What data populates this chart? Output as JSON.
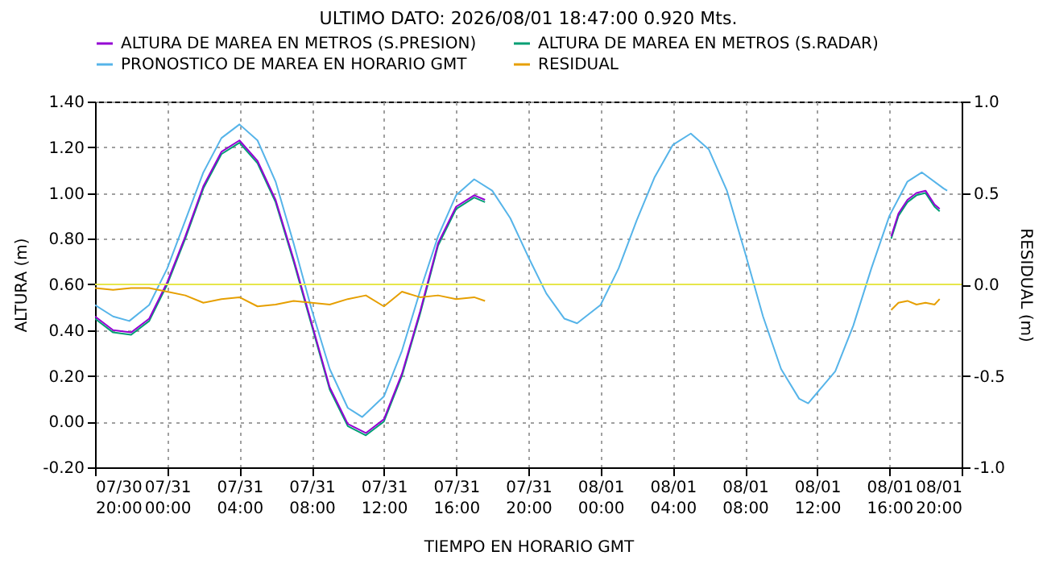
{
  "chart_data": {
    "type": "line",
    "title": "ULTIMO DATO: 2026/08/01  18:47:00 0.920 Mts.",
    "xlabel": "TIEMPO EN HORARIO GMT",
    "ylabel": "ALTURA (m)",
    "y2label": "RESIDUAL (m)",
    "xlim": [
      "2026-07-30T20:00",
      "2026-08-01T20:00"
    ],
    "xticks": [
      {
        "value": "2026-07-30T20:00",
        "label": "07/30\n20:00"
      },
      {
        "value": "2026-07-31T00:00",
        "label": "07/31\n00:00"
      },
      {
        "value": "2026-07-31T04:00",
        "label": "07/31\n04:00"
      },
      {
        "value": "2026-07-31T08:00",
        "label": "07/31\n08:00"
      },
      {
        "value": "2026-07-31T12:00",
        "label": "07/31\n12:00"
      },
      {
        "value": "2026-07-31T16:00",
        "label": "07/31\n16:00"
      },
      {
        "value": "2026-07-31T20:00",
        "label": "07/31\n20:00"
      },
      {
        "value": "2026-08-01T00:00",
        "label": "08/01\n00:00"
      },
      {
        "value": "2026-08-01T04:00",
        "label": "08/01\n04:00"
      },
      {
        "value": "2026-08-01T08:00",
        "label": "08/01\n08:00"
      },
      {
        "value": "2026-08-01T12:00",
        "label": "08/01\n12:00"
      },
      {
        "value": "2026-08-01T16:00",
        "label": "08/01\n16:00"
      },
      {
        "value": "2026-08-01T20:00",
        "label": "08/01\n20:00"
      }
    ],
    "ylim": [
      -0.2,
      1.4
    ],
    "yticks": [
      {
        "value": -0.2,
        "label": "-0.20"
      },
      {
        "value": 0,
        "label": "0.00"
      },
      {
        "value": 0.2,
        "label": "0.20"
      },
      {
        "value": 0.4,
        "label": "0.40"
      },
      {
        "value": 0.6,
        "label": "0.60"
      },
      {
        "value": 0.8,
        "label": "0.80"
      },
      {
        "value": 1,
        "label": "1.00"
      },
      {
        "value": 1.2,
        "label": "1.20"
      },
      {
        "value": 1.4,
        "label": "1.40"
      }
    ],
    "y2lim": [
      -1,
      1
    ],
    "y2ticks": [
      {
        "value": -1,
        "label": "-1.0"
      },
      {
        "value": -0.5,
        "label": "-0.5"
      },
      {
        "value": 0,
        "label": "0.0"
      },
      {
        "value": 0.5,
        "label": "0.5"
      },
      {
        "value": 1,
        "label": "1.0"
      }
    ],
    "grid": true,
    "legend": "top",
    "ref_lines": [
      {
        "axis": "y2",
        "value": 0,
        "color": "#e6e64c"
      }
    ],
    "series": [
      {
        "name": "ALTURA DE MAREA EN METROS (S.PRESION)",
        "color": "#9400d3",
        "x": [
          "2026-07-30T20:00",
          "2026-07-30T21:00",
          "2026-07-30T22:00",
          "2026-07-30T23:00",
          "2026-07-31T00:00",
          "2026-07-31T01:00",
          "2026-07-31T02:00",
          "2026-07-31T03:00",
          "2026-07-31T04:00",
          "2026-07-31T05:00",
          "2026-07-31T06:00",
          "2026-07-31T07:00",
          "2026-07-31T08:00",
          "2026-07-31T09:00",
          "2026-07-31T10:00",
          "2026-07-31T11:00",
          "2026-07-31T12:00",
          "2026-07-31T13:00",
          "2026-07-31T14:00",
          "2026-07-31T15:00",
          "2026-07-31T16:00",
          "2026-07-31T17:00",
          "2026-07-31T17:36",
          "2026-08-01T00:00",
          "2026-08-01T16:06",
          "2026-08-01T16:30",
          "2026-08-01T17:00",
          "2026-08-01T17:30",
          "2026-08-01T18:00",
          "2026-08-01T18:30",
          "2026-08-01T18:47"
        ],
        "values": [
          0.46,
          0.4,
          0.39,
          0.45,
          0.61,
          0.81,
          1.03,
          1.18,
          1.23,
          1.14,
          0.97,
          0.71,
          0.43,
          0.15,
          -0.01,
          -0.05,
          0.01,
          0.21,
          0.48,
          0.78,
          0.94,
          0.99,
          0.97,
          null,
          0.81,
          0.91,
          0.97,
          1.0,
          1.01,
          0.95,
          0.93
        ]
      },
      {
        "name": "ALTURA DE MAREA EN METROS (S.RADAR)",
        "color": "#009e73",
        "x": [
          "2026-07-30T20:00",
          "2026-07-30T21:00",
          "2026-07-30T22:00",
          "2026-07-30T23:00",
          "2026-07-31T00:00",
          "2026-07-31T01:00",
          "2026-07-31T02:00",
          "2026-07-31T03:00",
          "2026-07-31T04:00",
          "2026-07-31T05:00",
          "2026-07-31T06:00",
          "2026-07-31T07:00",
          "2026-07-31T08:00",
          "2026-07-31T09:00",
          "2026-07-31T10:00",
          "2026-07-31T11:00",
          "2026-07-31T12:00",
          "2026-07-31T13:00",
          "2026-07-31T14:00",
          "2026-07-31T15:00",
          "2026-07-31T16:00",
          "2026-07-31T17:00",
          "2026-07-31T17:36",
          "2026-08-01T00:00",
          "2026-08-01T16:06",
          "2026-08-01T16:30",
          "2026-08-01T17:00",
          "2026-08-01T17:30",
          "2026-08-01T18:00",
          "2026-08-01T18:30",
          "2026-08-01T18:47"
        ],
        "values": [
          0.45,
          0.39,
          0.38,
          0.44,
          0.6,
          0.8,
          1.02,
          1.17,
          1.22,
          1.13,
          0.96,
          0.7,
          0.42,
          0.14,
          -0.02,
          -0.06,
          0.0,
          0.2,
          0.47,
          0.77,
          0.93,
          0.98,
          0.96,
          null,
          0.8,
          0.9,
          0.96,
          0.99,
          1.0,
          0.94,
          0.92
        ]
      },
      {
        "name": "PRONOSTICO DE MAREA EN HORARIO GMT",
        "color": "#56b4e9",
        "x": [
          "2026-07-30T20:00",
          "2026-07-30T21:00",
          "2026-07-30T21:54",
          "2026-07-30T23:00",
          "2026-07-31T00:00",
          "2026-07-31T01:00",
          "2026-07-31T02:00",
          "2026-07-31T03:00",
          "2026-07-31T04:00",
          "2026-07-31T05:00",
          "2026-07-31T06:00",
          "2026-07-31T07:00",
          "2026-07-31T08:00",
          "2026-07-31T09:00",
          "2026-07-31T10:00",
          "2026-07-31T10:48",
          "2026-07-31T12:00",
          "2026-07-31T13:00",
          "2026-07-31T14:00",
          "2026-07-31T15:00",
          "2026-07-31T16:00",
          "2026-07-31T17:00",
          "2026-07-31T18:00",
          "2026-07-31T19:00",
          "2026-07-31T20:00",
          "2026-07-31T21:00",
          "2026-07-31T22:00",
          "2026-07-31T22:42",
          "2026-08-01T00:00",
          "2026-08-01T01:00",
          "2026-08-01T02:00",
          "2026-08-01T03:00",
          "2026-08-01T04:00",
          "2026-08-01T05:00",
          "2026-08-01T06:00",
          "2026-08-01T07:00",
          "2026-08-01T08:00",
          "2026-08-01T09:00",
          "2026-08-01T10:00",
          "2026-08-01T11:00",
          "2026-08-01T11:30",
          "2026-08-01T13:00",
          "2026-08-01T14:00",
          "2026-08-01T15:00",
          "2026-08-01T16:00",
          "2026-08-01T17:00",
          "2026-08-01T17:48",
          "2026-08-01T19:00",
          "2026-08-01T19:12"
        ],
        "values": [
          0.51,
          0.46,
          0.44,
          0.51,
          0.67,
          0.88,
          1.09,
          1.24,
          1.3,
          1.23,
          1.05,
          0.78,
          0.49,
          0.23,
          0.06,
          0.02,
          0.11,
          0.31,
          0.57,
          0.81,
          0.99,
          1.06,
          1.01,
          0.89,
          0.72,
          0.56,
          0.45,
          0.43,
          0.51,
          0.67,
          0.88,
          1.07,
          1.21,
          1.26,
          1.19,
          1.01,
          0.74,
          0.46,
          0.23,
          0.1,
          0.08,
          0.22,
          0.42,
          0.67,
          0.9,
          1.05,
          1.09,
          1.02,
          1.01
        ]
      },
      {
        "name": "RESIDUAL",
        "color": "#e69f00",
        "axis": "y2",
        "x": [
          "2026-07-30T20:00",
          "2026-07-30T21:00",
          "2026-07-30T22:00",
          "2026-07-30T23:00",
          "2026-07-31T00:00",
          "2026-07-31T01:00",
          "2026-07-31T02:00",
          "2026-07-31T03:00",
          "2026-07-31T04:00",
          "2026-07-31T05:00",
          "2026-07-31T06:00",
          "2026-07-31T07:00",
          "2026-07-31T08:00",
          "2026-07-31T09:00",
          "2026-07-31T10:00",
          "2026-07-31T11:00",
          "2026-07-31T12:00",
          "2026-07-31T13:00",
          "2026-07-31T14:00",
          "2026-07-31T15:00",
          "2026-07-31T16:00",
          "2026-07-31T17:00",
          "2026-07-31T17:36",
          "2026-08-01T00:00",
          "2026-08-01T16:06",
          "2026-08-01T16:30",
          "2026-08-01T17:00",
          "2026-08-01T17:30",
          "2026-08-01T18:00",
          "2026-08-01T18:30",
          "2026-08-01T18:47"
        ],
        "values": [
          -0.02,
          -0.03,
          -0.02,
          -0.02,
          -0.04,
          -0.06,
          -0.1,
          -0.08,
          -0.07,
          -0.12,
          -0.11,
          -0.09,
          -0.1,
          -0.11,
          -0.08,
          -0.06,
          -0.12,
          -0.04,
          -0.07,
          -0.06,
          -0.08,
          -0.07,
          -0.09,
          null,
          -0.14,
          -0.1,
          -0.09,
          -0.11,
          -0.1,
          -0.11,
          -0.08
        ]
      }
    ]
  }
}
